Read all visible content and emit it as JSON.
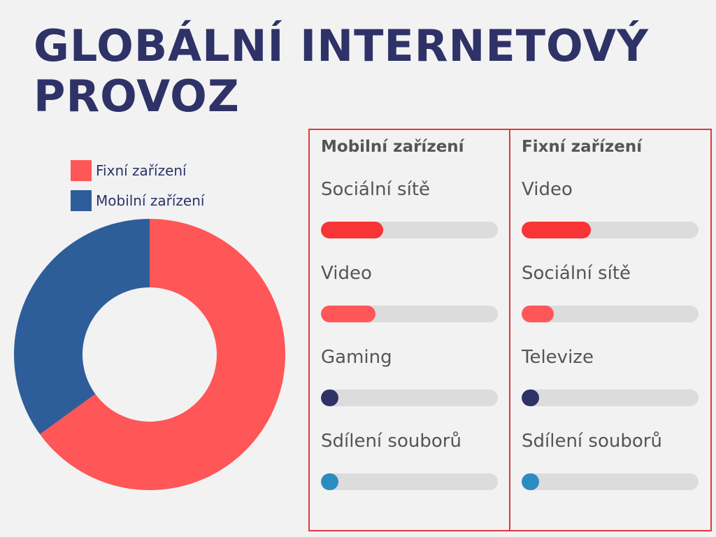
{
  "title": "GLOBÁLNÍ INTERNETOVÝ PROVOZ",
  "chart_data": [
    {
      "type": "pie",
      "donut": true,
      "legend_position": "top-left",
      "series": [
        {
          "name": "Fixní zařízení",
          "value": 65,
          "color": "#ff5657"
        },
        {
          "name": "Mobilní zařízení",
          "value": 35,
          "color": "#2e5e99"
        }
      ]
    },
    {
      "type": "bar",
      "orientation": "horizontal",
      "title": "Mobilní zařízení",
      "xlim": [
        0,
        100
      ],
      "categories": [
        "Sociální sítě",
        "Video",
        "Gaming",
        "Sdílení souborů"
      ],
      "values": [
        35,
        31,
        10,
        10
      ],
      "colors": [
        "#f93434",
        "#ff5657",
        "#2e3267",
        "#2d8cbf"
      ]
    },
    {
      "type": "bar",
      "orientation": "horizontal",
      "title": "Fixní zařízení",
      "xlim": [
        0,
        100
      ],
      "categories": [
        "Video",
        "Sociální sítě",
        "Televize",
        "Sdílení souborů"
      ],
      "values": [
        39,
        18,
        10,
        10
      ],
      "colors": [
        "#f93434",
        "#ff5657",
        "#2e3267",
        "#2d8cbf"
      ]
    }
  ]
}
